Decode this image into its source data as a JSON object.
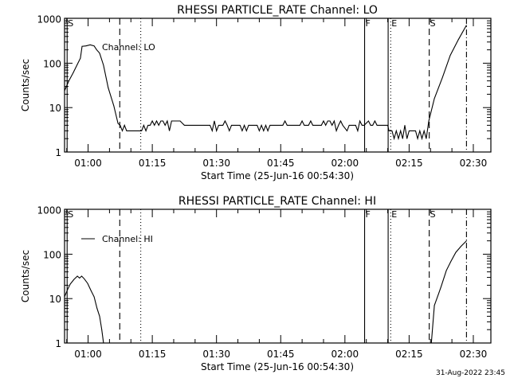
{
  "colors": {
    "background": "#ffffff",
    "foreground": "#000000"
  },
  "timestamp": "31-Aug-2022 23:45",
  "chart_data": [
    {
      "type": "line",
      "title": "RHESSI PARTICLE_RATE Channel: LO",
      "xlabel": "Start Time (25-Jun-16 00:54:30)",
      "ylabel": "Counts/sec",
      "x_units": "minutes after 00:54:30",
      "xlim": [
        0,
        99.6
      ],
      "ylim": [
        1,
        1000
      ],
      "yscale": "log",
      "x_ticks": [
        {
          "t": 5.5,
          "label": "01:00"
        },
        {
          "t": 20.5,
          "label": "01:15"
        },
        {
          "t": 35.5,
          "label": "01:30"
        },
        {
          "t": 50.5,
          "label": "01:45"
        },
        {
          "t": 65.5,
          "label": "02:00"
        },
        {
          "t": 80.5,
          "label": "02:15"
        },
        {
          "t": 95.5,
          "label": "02:30"
        }
      ],
      "y_ticks": [
        {
          "v": 1,
          "label": "1"
        },
        {
          "v": 10,
          "label": "10"
        },
        {
          "v": 100,
          "label": "100"
        },
        {
          "v": 1000,
          "label": "1000"
        }
      ],
      "legend": {
        "label": "Channel: LO",
        "placement": "top-left"
      },
      "markers": [
        {
          "t": 0.6,
          "style": "solid",
          "label": "S"
        },
        {
          "t": 12.9,
          "style": "dashed",
          "label": ""
        },
        {
          "t": 17.8,
          "style": "dotted",
          "label": ""
        },
        {
          "t": 70.1,
          "style": "solid",
          "label": "F"
        },
        {
          "t": 75.6,
          "style": "solid",
          "label": ""
        },
        {
          "t": 76.2,
          "style": "dotted",
          "label": "E"
        },
        {
          "t": 85.2,
          "style": "dashed",
          "label": "S"
        },
        {
          "t": 93.9,
          "style": "dashdot",
          "label": ""
        }
      ],
      "series": [
        {
          "name": "LO",
          "points": [
            [
              0,
              24
            ],
            [
              1,
              40
            ],
            [
              2,
              60
            ],
            [
              3,
              95
            ],
            [
              3.7,
              130
            ],
            [
              4.1,
              240
            ],
            [
              5,
              245
            ],
            [
              6,
              260
            ],
            [
              6.9,
              245
            ],
            [
              7.5,
              200
            ],
            [
              8.2,
              168
            ],
            [
              9.1,
              90
            ],
            [
              10.2,
              28
            ],
            [
              11.5,
              11
            ],
            [
              12.5,
              4.4
            ],
            [
              13,
              4
            ],
            [
              13.5,
              3
            ],
            [
              14,
              4
            ],
            [
              14.5,
              3
            ],
            [
              15,
              3
            ],
            [
              16,
              3
            ],
            [
              17,
              3
            ],
            [
              18,
              3
            ],
            [
              18.5,
              4
            ],
            [
              19,
              3
            ],
            [
              19.5,
              4
            ],
            [
              20,
              4
            ],
            [
              20.5,
              5
            ],
            [
              21,
              4
            ],
            [
              21.5,
              5
            ],
            [
              22,
              4
            ],
            [
              22.5,
              5
            ],
            [
              23,
              5
            ],
            [
              23.5,
              4
            ],
            [
              24,
              5
            ],
            [
              24.5,
              3
            ],
            [
              25,
              5
            ],
            [
              26,
              5
            ],
            [
              27,
              5
            ],
            [
              28,
              4
            ],
            [
              29,
              4
            ],
            [
              30,
              4
            ],
            [
              31,
              4
            ],
            [
              32,
              4
            ],
            [
              33,
              4
            ],
            [
              34,
              4
            ],
            [
              34.5,
              3
            ],
            [
              35,
              5
            ],
            [
              35.5,
              3
            ],
            [
              36,
              4
            ],
            [
              37,
              4
            ],
            [
              37.5,
              5
            ],
            [
              38,
              4
            ],
            [
              38.5,
              3
            ],
            [
              39,
              4
            ],
            [
              40,
              4
            ],
            [
              41,
              4
            ],
            [
              41.5,
              3
            ],
            [
              42,
              4
            ],
            [
              42.5,
              3
            ],
            [
              43,
              4
            ],
            [
              44,
              4
            ],
            [
              45,
              4
            ],
            [
              45.5,
              3
            ],
            [
              46,
              4
            ],
            [
              46.5,
              3
            ],
            [
              47,
              4
            ],
            [
              47.5,
              3
            ],
            [
              48,
              4
            ],
            [
              49,
              4
            ],
            [
              50,
              4
            ],
            [
              51,
              4
            ],
            [
              51.5,
              5
            ],
            [
              52,
              4
            ],
            [
              53,
              4
            ],
            [
              54,
              4
            ],
            [
              55,
              4
            ],
            [
              55.5,
              5
            ],
            [
              56,
              4
            ],
            [
              57,
              4
            ],
            [
              57.5,
              5
            ],
            [
              58,
              4
            ],
            [
              59,
              4
            ],
            [
              60,
              4
            ],
            [
              60.5,
              5
            ],
            [
              61,
              4
            ],
            [
              61.5,
              5
            ],
            [
              62,
              5
            ],
            [
              62.5,
              4
            ],
            [
              63,
              5
            ],
            [
              63.5,
              3
            ],
            [
              64,
              4
            ],
            [
              64.5,
              5
            ],
            [
              65,
              4
            ],
            [
              66,
              3
            ],
            [
              66.5,
              4
            ],
            [
              67,
              4
            ],
            [
              68,
              4
            ],
            [
              68.5,
              3
            ],
            [
              69,
              5
            ],
            [
              69.5,
              4
            ],
            [
              70,
              4
            ],
            [
              71,
              5
            ],
            [
              71.5,
              4
            ],
            [
              72,
              4
            ],
            [
              72.5,
              5
            ],
            [
              73,
              4
            ],
            [
              74,
              4
            ],
            [
              75.5,
              4
            ],
            [
              75.8,
              3
            ],
            [
              76.5,
              3
            ],
            [
              77,
              2
            ],
            [
              77.5,
              3
            ],
            [
              78,
              2
            ],
            [
              78.5,
              3
            ],
            [
              79,
              2
            ],
            [
              79.5,
              4
            ],
            [
              80,
              2
            ],
            [
              80.5,
              3
            ],
            [
              81,
              3
            ],
            [
              82,
              3
            ],
            [
              82.5,
              2
            ],
            [
              83,
              3
            ],
            [
              83.5,
              2
            ],
            [
              84,
              3
            ],
            [
              84.5,
              2
            ],
            [
              85.1,
              5
            ],
            [
              86.4,
              16
            ],
            [
              88.3,
              48
            ],
            [
              90.1,
              150
            ],
            [
              92,
              340
            ],
            [
              93.9,
              720
            ]
          ]
        }
      ]
    },
    {
      "type": "line",
      "title": "RHESSI PARTICLE_RATE Channel: HI",
      "xlabel": "Start Time (25-Jun-16 00:54:30)",
      "ylabel": "Counts/sec",
      "x_units": "minutes after 00:54:30",
      "xlim": [
        0,
        99.6
      ],
      "ylim": [
        1,
        1000
      ],
      "yscale": "log",
      "x_ticks": [
        {
          "t": 5.5,
          "label": "01:00"
        },
        {
          "t": 20.5,
          "label": "01:15"
        },
        {
          "t": 35.5,
          "label": "01:30"
        },
        {
          "t": 50.5,
          "label": "01:45"
        },
        {
          "t": 65.5,
          "label": "02:00"
        },
        {
          "t": 80.5,
          "label": "02:15"
        },
        {
          "t": 95.5,
          "label": "02:30"
        }
      ],
      "y_ticks": [
        {
          "v": 1,
          "label": "1"
        },
        {
          "v": 10,
          "label": "10"
        },
        {
          "v": 100,
          "label": "100"
        },
        {
          "v": 1000,
          "label": "1000"
        }
      ],
      "legend": {
        "label": "Channel: HI",
        "placement": "top-left"
      },
      "markers": [
        {
          "t": 0.6,
          "style": "solid",
          "label": "S"
        },
        {
          "t": 12.9,
          "style": "dashed",
          "label": ""
        },
        {
          "t": 17.8,
          "style": "dotted",
          "label": ""
        },
        {
          "t": 70.1,
          "style": "solid",
          "label": "F"
        },
        {
          "t": 75.6,
          "style": "solid",
          "label": ""
        },
        {
          "t": 76.2,
          "style": "dotted",
          "label": "E"
        },
        {
          "t": 85.2,
          "style": "dashed",
          "label": "S"
        },
        {
          "t": 93.9,
          "style": "dashdot",
          "label": ""
        }
      ],
      "series": [
        {
          "name": "HI",
          "points": [
            [
              0,
              11
            ],
            [
              0.7,
              16
            ],
            [
              1.3,
              21
            ],
            [
              2.2,
              27
            ],
            [
              3,
              32
            ],
            [
              3.5,
              29
            ],
            [
              4,
              32
            ],
            [
              4.6,
              28
            ],
            [
              5.4,
              22
            ],
            [
              6.2,
              15
            ],
            [
              6.9,
              11
            ],
            [
              7.6,
              6
            ],
            [
              8.2,
              4
            ],
            [
              8.7,
              2
            ],
            [
              9.1,
              1
            ],
            [
              85.7,
              1
            ],
            [
              86.4,
              7
            ],
            [
              87.4,
              13
            ],
            [
              88,
              19
            ],
            [
              89.2,
              43
            ],
            [
              90.3,
              70
            ],
            [
              91.4,
              110
            ],
            [
              92.6,
              150
            ],
            [
              93.9,
              200
            ]
          ]
        }
      ]
    }
  ]
}
